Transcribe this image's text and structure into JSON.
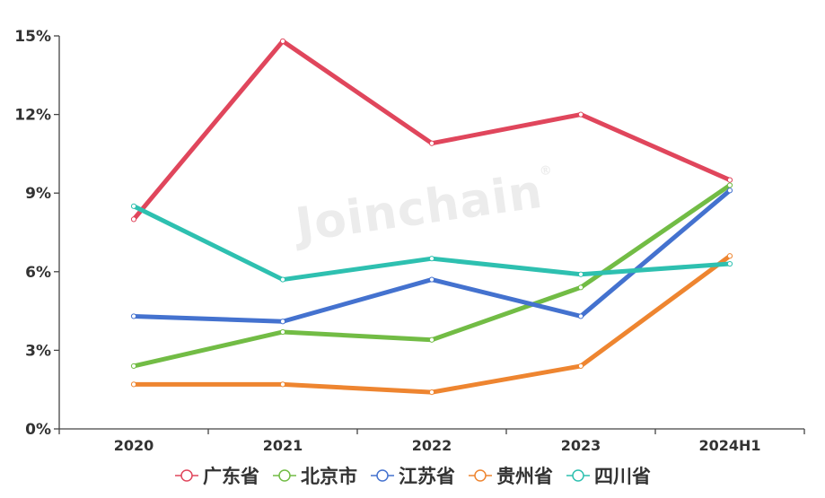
{
  "chart_data": {
    "type": "line",
    "title": "",
    "xlabel": "",
    "ylabel": "",
    "categories": [
      "2020",
      "2021",
      "2022",
      "2023",
      "2024H1"
    ],
    "y_ticks": [
      "0%",
      "3%",
      "6%",
      "9%",
      "12%",
      "15%"
    ],
    "ylim": [
      0,
      15
    ],
    "y_unit": "%",
    "grid": false,
    "legend_position": "bottom",
    "series": [
      {
        "name": "广东省",
        "color": "#E0465C",
        "values": [
          8.0,
          14.8,
          10.9,
          12.0,
          9.5
        ]
      },
      {
        "name": "北京市",
        "color": "#72BC45",
        "values": [
          2.4,
          3.7,
          3.4,
          5.4,
          9.3
        ]
      },
      {
        "name": "江苏省",
        "color": "#4472CF",
        "values": [
          4.3,
          4.1,
          5.7,
          4.3,
          9.1
        ]
      },
      {
        "name": "贵州省",
        "color": "#EE8530",
        "values": [
          1.7,
          1.7,
          1.4,
          2.4,
          6.6
        ]
      },
      {
        "name": "四川省",
        "color": "#2EC0B0",
        "values": [
          8.5,
          5.7,
          6.5,
          5.9,
          6.3
        ]
      }
    ]
  },
  "watermark": {
    "text": "Joinchain",
    "mark": "®"
  }
}
